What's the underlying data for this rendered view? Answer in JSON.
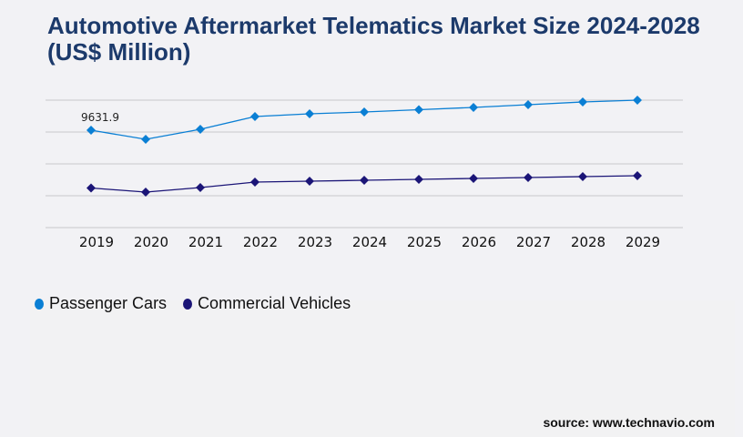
{
  "title": "Automotive Aftermarket Telematics Market Size 2024-2028 (US$ Million)",
  "source": "source: www.technavio.com",
  "chart_data": {
    "type": "line",
    "title": "Automotive Aftermarket Telematics Market Size 2024-2028 (US$ Million)",
    "xlabel": "",
    "ylabel": "",
    "categories": [
      "2019",
      "2020",
      "2021",
      "2022",
      "2023",
      "2024",
      "2025",
      "2026",
      "2027",
      "2028",
      "2029"
    ],
    "ylim": [
      0,
      12600
    ],
    "y_tick_labels_visible": false,
    "grid": true,
    "legend_placement": "bottom-left",
    "series": [
      {
        "name": "Passenger Cars",
        "color": "#0a7fd4",
        "values": [
          9631.9,
          8730,
          9720,
          10980,
          11250,
          11430,
          11655,
          11880,
          12150,
          12420,
          12600
        ]
      },
      {
        "name": "Commercial Vehicles",
        "color": "#1b1577",
        "values": [
          3915,
          3510,
          3960,
          4500,
          4590,
          4680,
          4770,
          4860,
          4950,
          5040,
          5130
        ]
      }
    ],
    "annotations": [
      {
        "series": 0,
        "index": 0,
        "text": "9631.9"
      }
    ]
  }
}
